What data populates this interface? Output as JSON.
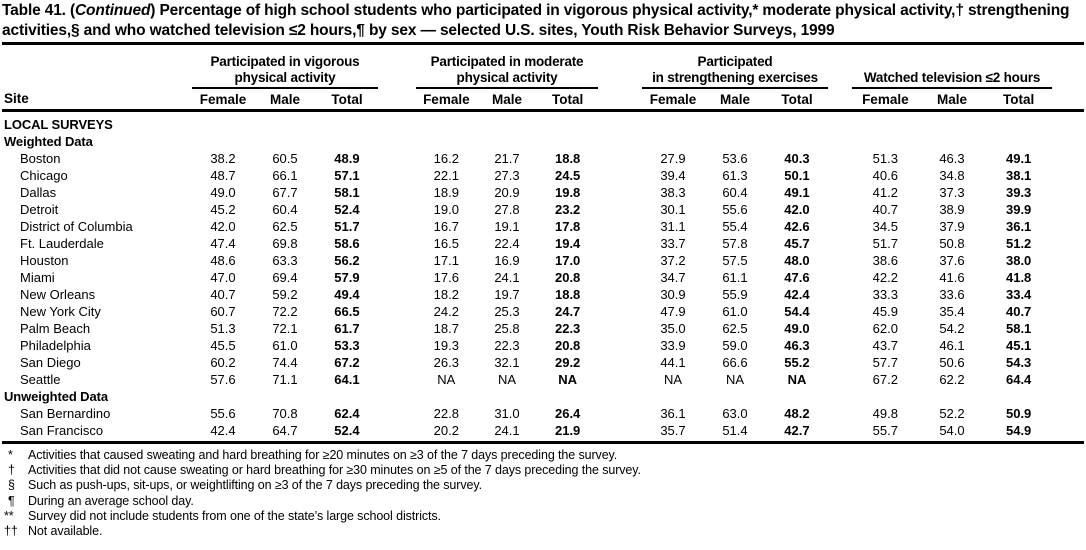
{
  "title": {
    "prefix": "Table 41. (",
    "continued": "Continued",
    "suffix": ") Percentage of high school students who participated in vigorous physical activity,* moderate physical activity,† strengthening activities,§ and who watched television ≤2 hours,¶ by sex — selected U.S. sites, Youth Risk Behavior Surveys, 1999"
  },
  "header": {
    "site_label": "Site",
    "groups": [
      {
        "name": "vigorous",
        "line1": "Participated in vigorous",
        "line2": "physical activity",
        "sub": [
          "Female",
          "Male",
          "Total"
        ]
      },
      {
        "name": "moderate",
        "line1": "Participated in moderate",
        "line2": "physical activity",
        "sub": [
          "Female",
          "Male",
          "Total"
        ]
      },
      {
        "name": "strengthening",
        "line1": "Participated",
        "line2": "in strengthening exercises",
        "sub": [
          "Female",
          "Male",
          "Total"
        ]
      },
      {
        "name": "television",
        "line1": "",
        "line2": "Watched television ≤2 hours",
        "sub": [
          "Female",
          "Male",
          "Total"
        ]
      }
    ]
  },
  "body": {
    "sections": [
      {
        "label": "LOCAL SURVEYS",
        "rows": []
      },
      {
        "label": "Weighted Data",
        "rows": [
          {
            "site": "Boston",
            "values": [
              "38.2",
              "60.5",
              "48.9",
              "16.2",
              "21.7",
              "18.8",
              "27.9",
              "53.6",
              "40.3",
              "51.3",
              "46.3",
              "49.1"
            ]
          },
          {
            "site": "Chicago",
            "values": [
              "48.7",
              "66.1",
              "57.1",
              "22.1",
              "27.3",
              "24.5",
              "39.4",
              "61.3",
              "50.1",
              "40.6",
              "34.8",
              "38.1"
            ]
          },
          {
            "site": "Dallas",
            "values": [
              "49.0",
              "67.7",
              "58.1",
              "18.9",
              "20.9",
              "19.8",
              "38.3",
              "60.4",
              "49.1",
              "41.2",
              "37.3",
              "39.3"
            ]
          },
          {
            "site": "Detroit",
            "values": [
              "45.2",
              "60.4",
              "52.4",
              "19.0",
              "27.8",
              "23.2",
              "30.1",
              "55.6",
              "42.0",
              "40.7",
              "38.9",
              "39.9"
            ]
          },
          {
            "site": "District of Columbia",
            "values": [
              "42.0",
              "62.5",
              "51.7",
              "16.7",
              "19.1",
              "17.8",
              "31.1",
              "55.4",
              "42.6",
              "34.5",
              "37.9",
              "36.1"
            ]
          },
          {
            "site": "Ft. Lauderdale",
            "values": [
              "47.4",
              "69.8",
              "58.6",
              "16.5",
              "22.4",
              "19.4",
              "33.7",
              "57.8",
              "45.7",
              "51.7",
              "50.8",
              "51.2"
            ]
          },
          {
            "site": "Houston",
            "values": [
              "48.6",
              "63.3",
              "56.2",
              "17.1",
              "16.9",
              "17.0",
              "37.2",
              "57.5",
              "48.0",
              "38.6",
              "37.6",
              "38.0"
            ]
          },
          {
            "site": "Miami",
            "values": [
              "47.0",
              "69.4",
              "57.9",
              "17.6",
              "24.1",
              "20.8",
              "34.7",
              "61.1",
              "47.6",
              "42.2",
              "41.6",
              "41.8"
            ]
          },
          {
            "site": "New Orleans",
            "values": [
              "40.7",
              "59.2",
              "49.4",
              "18.2",
              "19.7",
              "18.8",
              "30.9",
              "55.9",
              "42.4",
              "33.3",
              "33.6",
              "33.4"
            ]
          },
          {
            "site": "New York City",
            "values": [
              "60.7",
              "72.2",
              "66.5",
              "24.2",
              "25.3",
              "24.7",
              "47.9",
              "61.0",
              "54.4",
              "45.9",
              "35.4",
              "40.7"
            ]
          },
          {
            "site": "Palm Beach",
            "values": [
              "51.3",
              "72.1",
              "61.7",
              "18.7",
              "25.8",
              "22.3",
              "35.0",
              "62.5",
              "49.0",
              "62.0",
              "54.2",
              "58.1"
            ]
          },
          {
            "site": "Philadelphia",
            "values": [
              "45.5",
              "61.0",
              "53.3",
              "19.3",
              "22.3",
              "20.8",
              "33.9",
              "59.0",
              "46.3",
              "43.7",
              "46.1",
              "45.1"
            ]
          },
          {
            "site": "San Diego",
            "values": [
              "60.2",
              "74.4",
              "67.2",
              "26.3",
              "32.1",
              "29.2",
              "44.1",
              "66.6",
              "55.2",
              "57.7",
              "50.6",
              "54.3"
            ]
          },
          {
            "site": "Seattle",
            "values": [
              "57.6",
              "71.1",
              "64.1",
              "NA",
              "NA",
              "NA",
              "NA",
              "NA",
              "NA",
              "67.2",
              "62.2",
              "64.4"
            ]
          }
        ]
      },
      {
        "label": "Unweighted Data",
        "rows": [
          {
            "site": "San Bernardino",
            "values": [
              "55.6",
              "70.8",
              "62.4",
              "22.8",
              "31.0",
              "26.4",
              "36.1",
              "63.0",
              "48.2",
              "49.8",
              "52.2",
              "50.9"
            ]
          },
          {
            "site": "San Francisco",
            "values": [
              "42.4",
              "64.7",
              "52.4",
              "20.2",
              "24.1",
              "21.9",
              "35.7",
              "51.4",
              "42.7",
              "55.7",
              "54.0",
              "54.9"
            ]
          }
        ]
      }
    ]
  },
  "footnotes": [
    {
      "marker": "*",
      "text": "Activities that caused sweating and hard breathing for ≥20 minutes on ≥3 of the 7 days preceding the survey."
    },
    {
      "marker": "†",
      "text": "Activities that did not cause sweating or hard breathing for ≥30 minutes on ≥5 of the 7 days preceding the survey."
    },
    {
      "marker": "§",
      "text": "Such as push-ups, sit-ups, or weightlifting on ≥3 of the 7 days preceding the survey."
    },
    {
      "marker": "¶",
      "text": "During an average school day."
    },
    {
      "marker": "**",
      "text": "Survey did not include students from one of the state’s large school districts."
    },
    {
      "marker": "††",
      "text": "Not available."
    }
  ]
}
